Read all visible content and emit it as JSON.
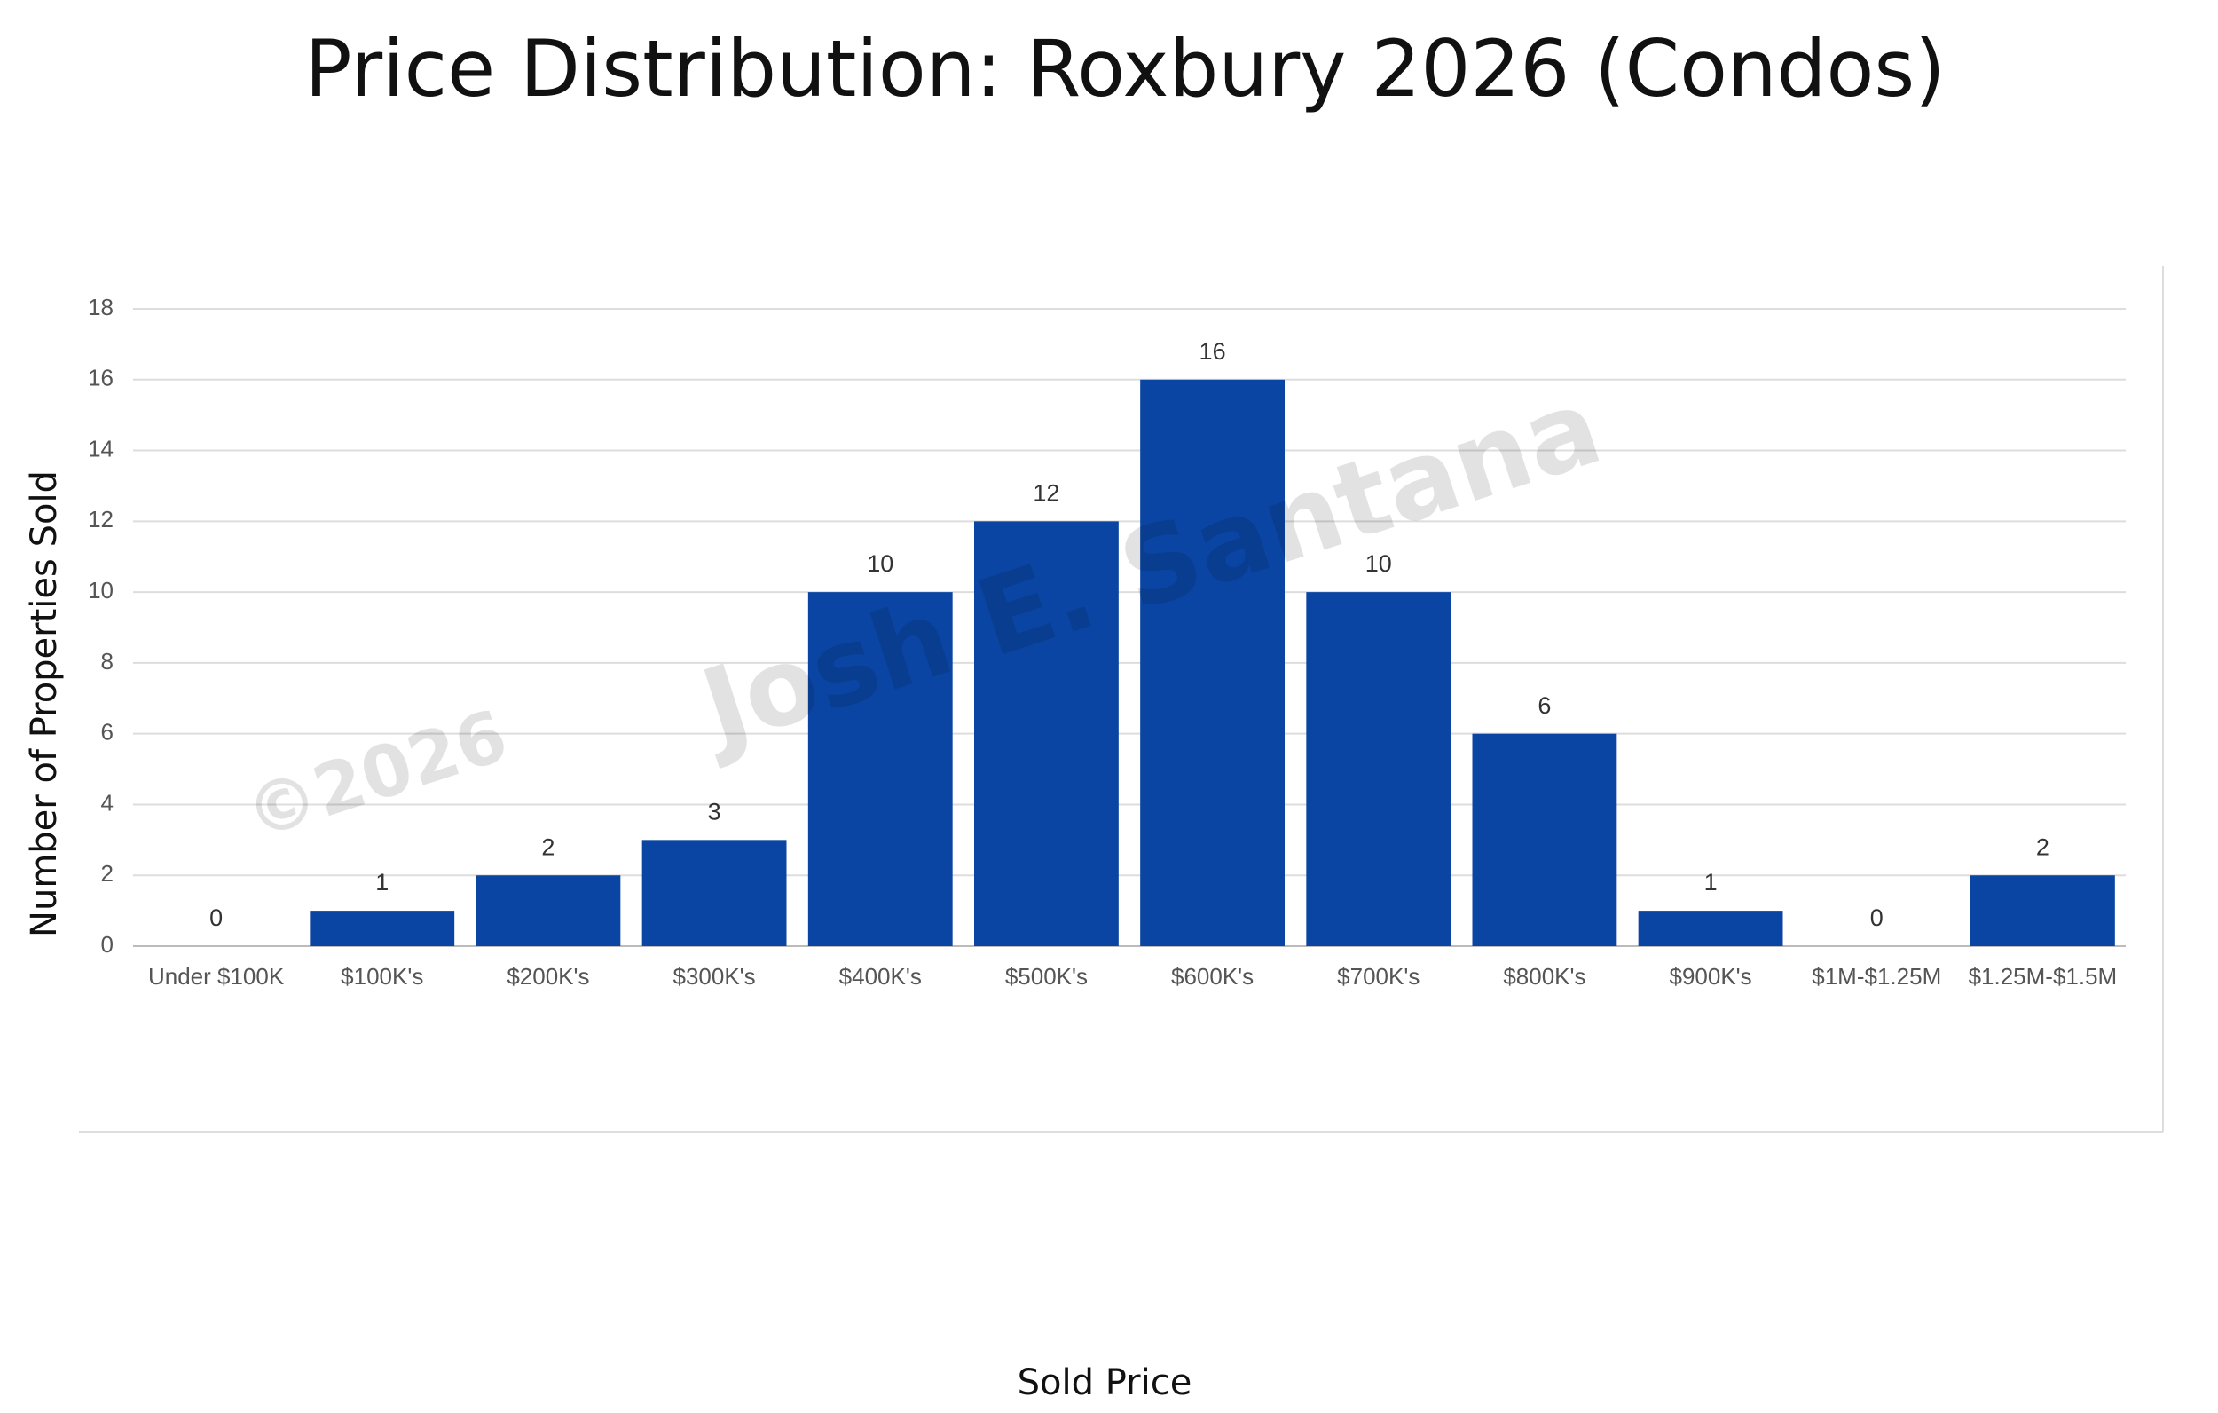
{
  "chart_data": {
    "type": "bar",
    "title": "Price Distribution: Roxbury 2026 (Condos)",
    "x_label": "Sold Price",
    "y_label": "Number of Properties Sold",
    "categories": [
      "Under $100K",
      "$100K's",
      "$200K's",
      "$300K's",
      "$400K's",
      "$500K's",
      "$600K's",
      "$700K's",
      "$800K's",
      "$900K's",
      "$1M-$1.25M",
      "$1.25M-$1.5M"
    ],
    "values": [
      0,
      1,
      2,
      3,
      10,
      12,
      16,
      10,
      6,
      1,
      0,
      2
    ],
    "color": "#0b45a3",
    "ylim": [
      0,
      18
    ],
    "yticks": [
      0,
      2,
      4,
      6,
      8,
      10,
      12,
      14,
      16,
      18
    ],
    "grid": true,
    "watermark": {
      "year": "©2026",
      "name": "Josh E. Santana"
    }
  }
}
